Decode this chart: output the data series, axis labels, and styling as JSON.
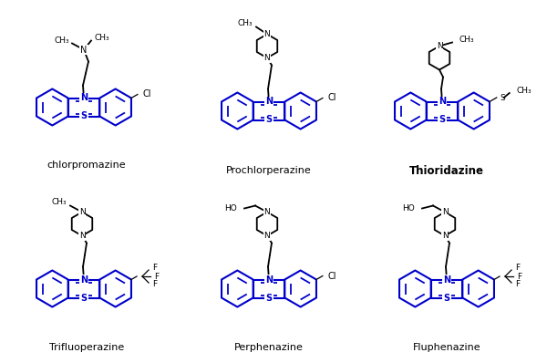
{
  "blue": "#0000cc",
  "black": "#000000",
  "white": "#ffffff",
  "molecules": [
    {
      "name": "chlorpromazine",
      "col": 0,
      "row": 0,
      "label_bold": false
    },
    {
      "name": "Prochlorperazine",
      "col": 1,
      "row": 0,
      "label_bold": false
    },
    {
      "name": "Thioridazine",
      "col": 2,
      "row": 0,
      "label_bold": true
    },
    {
      "name": "Trifluoperazine",
      "col": 0,
      "row": 1,
      "label_bold": false
    },
    {
      "name": "Perphenazine",
      "col": 1,
      "row": 1,
      "label_bold": false
    },
    {
      "name": "Fluphenazine",
      "col": 2,
      "row": 1,
      "label_bold": false
    }
  ]
}
